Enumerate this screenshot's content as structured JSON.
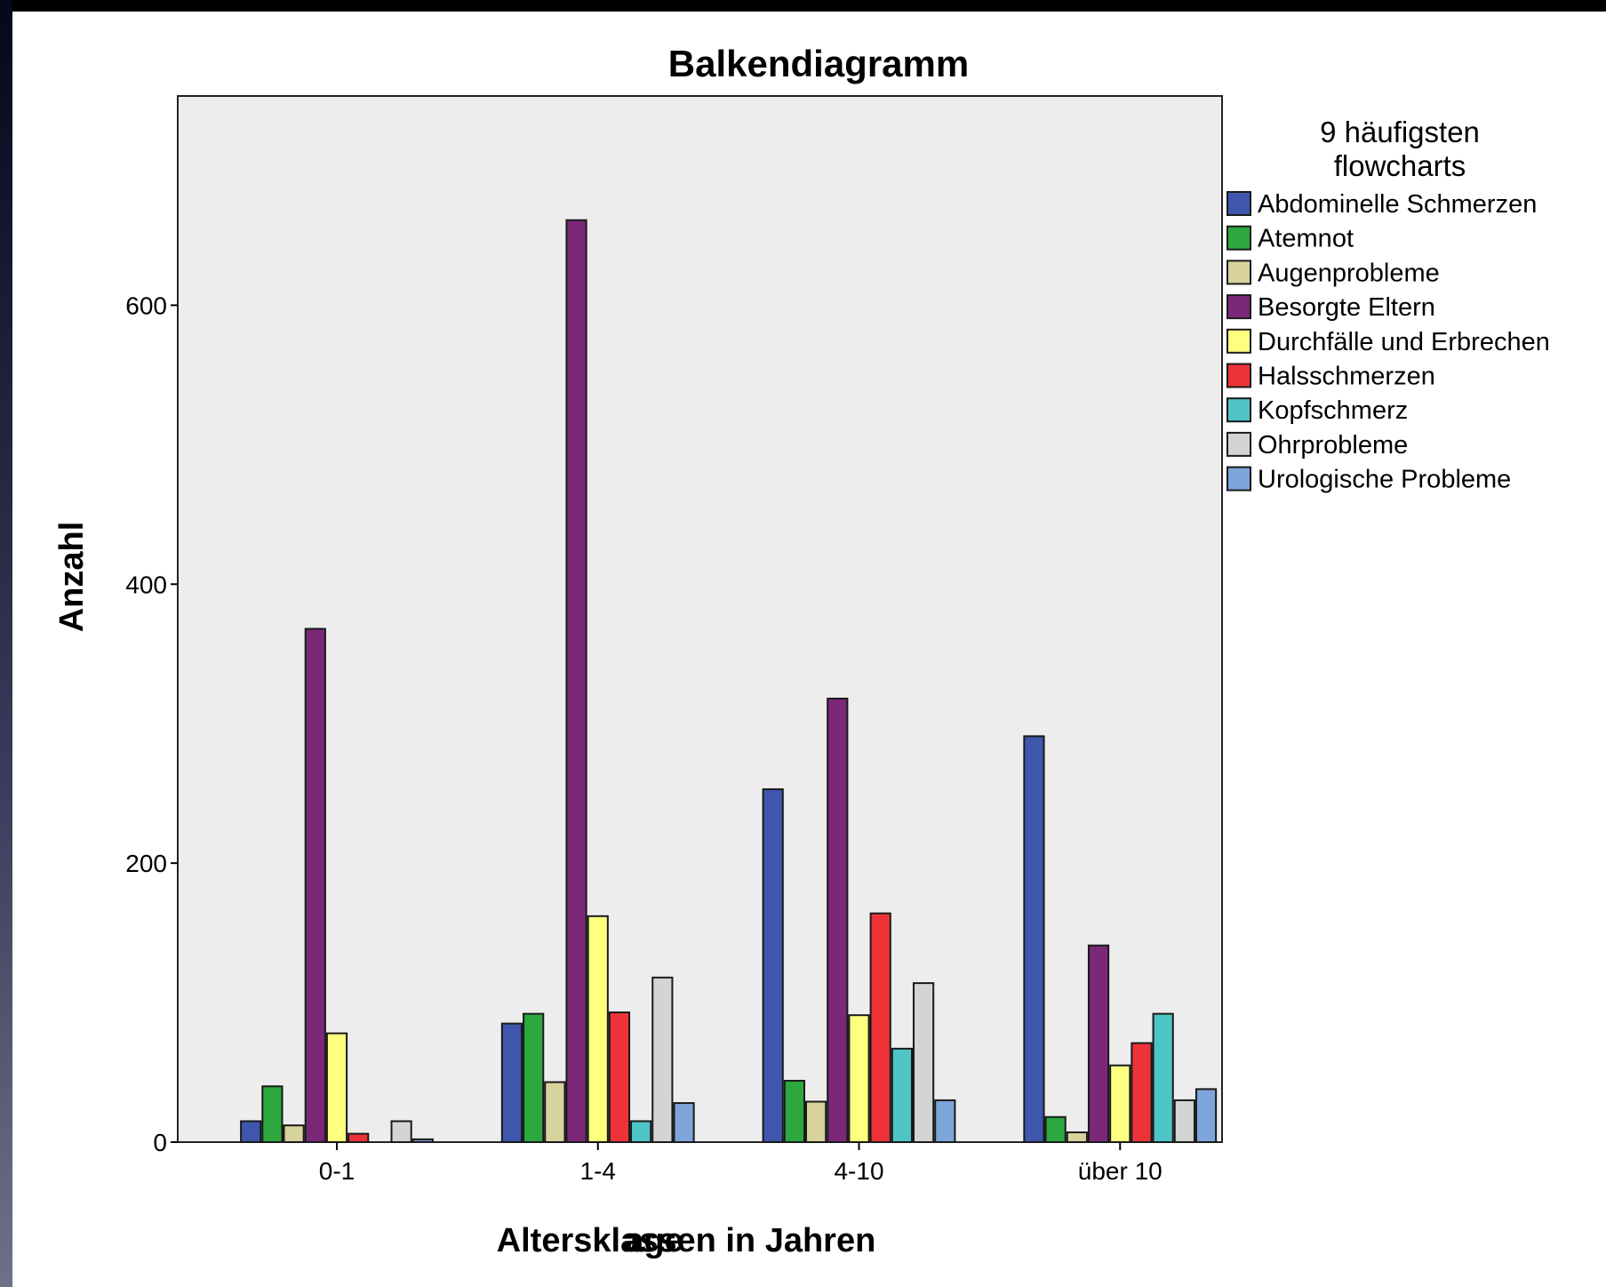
{
  "chart_data": {
    "type": "bar",
    "title": "Balkendiagramm",
    "xlabel": "Altersklassen in Jahren",
    "xlabel_overlap": "age",
    "ylabel": "Anzahl",
    "ylim": [
      0,
      750
    ],
    "yticks": [
      0,
      200,
      400,
      600
    ],
    "grid": false,
    "legend_position": "right",
    "legend_title_lines": [
      "9 häufigsten",
      "flowcharts"
    ],
    "categories": [
      "0-1",
      "1-4",
      "4-10",
      "über 10"
    ],
    "series": [
      {
        "name": "Abdominelle Schmerzen",
        "color": "#3f56ad",
        "values": [
          15,
          85,
          253,
          291
        ]
      },
      {
        "name": "Atemnot",
        "color": "#2ca83f",
        "values": [
          40,
          92,
          44,
          18
        ]
      },
      {
        "name": "Augenprobleme",
        "color": "#d8d29c",
        "values": [
          12,
          43,
          29,
          7
        ]
      },
      {
        "name": "Besorgte Eltern",
        "color": "#7b2879",
        "values": [
          368,
          661,
          318,
          141
        ]
      },
      {
        "name": "Durchfälle und Erbrechen",
        "color": "#ffff80",
        "values": [
          78,
          162,
          91,
          55
        ]
      },
      {
        "name": "Halsschmerzen",
        "color": "#ee3338",
        "values": [
          6,
          93,
          164,
          71
        ]
      },
      {
        "name": "Kopfschmerz",
        "color": "#4fc4c6",
        "values": [
          0,
          15,
          67,
          92
        ]
      },
      {
        "name": "Ohrprobleme",
        "color": "#d4d4d4",
        "values": [
          15,
          118,
          114,
          30
        ]
      },
      {
        "name": "Urologische Probleme",
        "color": "#7da5d9",
        "values": [
          2,
          28,
          30,
          38
        ]
      }
    ]
  },
  "colors": {
    "plot_background": "#ededed",
    "page_background": "#ffffff",
    "bar_stroke": "#1a1a1a"
  }
}
